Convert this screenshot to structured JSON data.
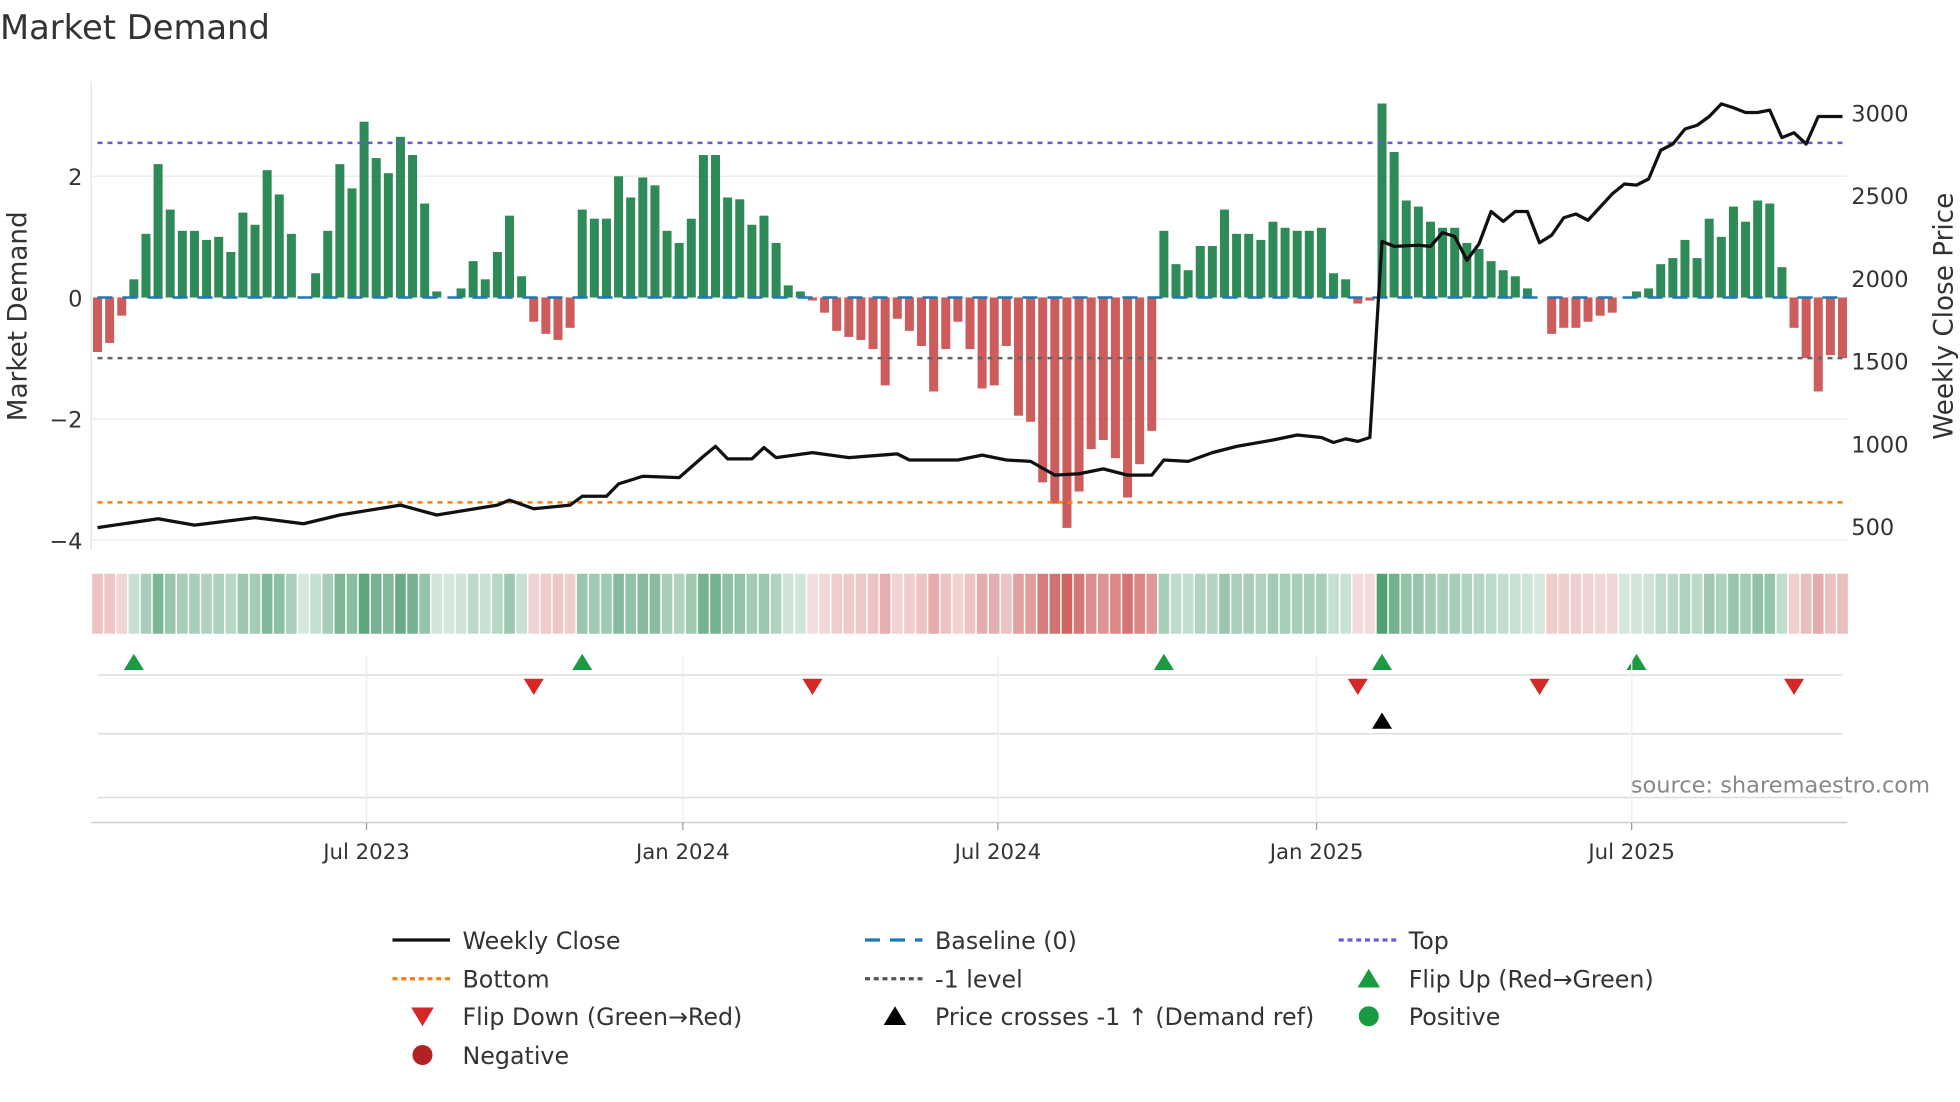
{
  "chart_data": {
    "type": "bar",
    "title": "Market Demand",
    "ylabel": "Market Demand",
    "y2label": "Weekly Close Price",
    "ylim": [
      -4.3,
      3.4
    ],
    "y2lim": [
      480,
      3300
    ],
    "yticks": [
      {
        "v": 2,
        "label": "2"
      },
      {
        "v": 0,
        "label": "0"
      },
      {
        "v": -2,
        "label": "−2"
      },
      {
        "v": -4,
        "label": "−4"
      }
    ],
    "y2ticks": [
      {
        "v": 500,
        "label": "500"
      },
      {
        "v": 1000,
        "label": "1000"
      },
      {
        "v": 1500,
        "label": "1500"
      },
      {
        "v": 2000,
        "label": "2000"
      },
      {
        "v": 2500,
        "label": "2500"
      },
      {
        "v": 3000,
        "label": "3000"
      }
    ],
    "xticks": [
      {
        "i": 22.2,
        "label": "Jul 2023"
      },
      {
        "i": 48.3,
        "label": "Jan 2024"
      },
      {
        "i": 74.3,
        "label": "Jul 2024"
      },
      {
        "i": 100.6,
        "label": "Jan 2025"
      },
      {
        "i": 126.6,
        "label": "Jul 2025"
      }
    ],
    "demand": [
      -0.9,
      -0.75,
      -0.3,
      0.3,
      1.05,
      2.2,
      1.45,
      1.1,
      1.1,
      0.95,
      1.0,
      0.75,
      1.4,
      1.2,
      2.1,
      1.7,
      1.05,
      0,
      0.4,
      1.1,
      2.2,
      1.8,
      2.9,
      2.3,
      2.05,
      2.65,
      2.35,
      1.55,
      0.1,
      0,
      0.15,
      0.6,
      0.3,
      0.75,
      1.35,
      0.35,
      -0.4,
      -0.6,
      -0.7,
      -0.5,
      1.45,
      1.3,
      1.3,
      2.0,
      1.65,
      1.98,
      1.85,
      1.1,
      0.9,
      1.3,
      2.35,
      2.35,
      1.65,
      1.62,
      1.2,
      1.35,
      0.9,
      0.2,
      0.1,
      -0.05,
      -0.25,
      -0.55,
      -0.65,
      -0.7,
      -0.85,
      -1.45,
      -0.35,
      -0.55,
      -0.8,
      -1.55,
      -0.85,
      -0.4,
      -0.85,
      -1.5,
      -1.45,
      -0.8,
      -1.95,
      -2.05,
      -3.05,
      -3.4,
      -3.8,
      -3.2,
      -2.5,
      -2.35,
      -2.65,
      -3.3,
      -2.75,
      -2.2,
      1.1,
      0.55,
      0.45,
      0.85,
      0.85,
      1.45,
      1.05,
      1.05,
      0.95,
      1.25,
      1.15,
      1.1,
      1.1,
      1.15,
      0.4,
      0.3,
      -0.1,
      -0.05,
      3.2,
      2.4,
      1.6,
      1.5,
      1.25,
      1.15,
      1.15,
      0.9,
      0.8,
      0.6,
      0.45,
      0.35,
      0.15,
      0,
      -0.6,
      -0.5,
      -0.5,
      -0.4,
      -0.3,
      -0.25,
      0,
      0.1,
      0.15,
      0.55,
      0.65,
      0.95,
      0.65,
      1.3,
      1.0,
      1.5,
      1.25,
      1.6,
      1.55,
      0.5,
      -0.5,
      -1.0,
      -1.55,
      -0.95,
      -1.0
    ],
    "price_anchors": [
      [
        0,
        492
      ],
      [
        5,
        545
      ],
      [
        8,
        507
      ],
      [
        13,
        552
      ],
      [
        17,
        515
      ],
      [
        20,
        568
      ],
      [
        25,
        628
      ],
      [
        28,
        568
      ],
      [
        33,
        628
      ],
      [
        34,
        658
      ],
      [
        36,
        606
      ],
      [
        39,
        628
      ],
      [
        40,
        681
      ],
      [
        42,
        681
      ],
      [
        43,
        756
      ],
      [
        45,
        802
      ],
      [
        48,
        794
      ],
      [
        50,
        922
      ],
      [
        51,
        983
      ],
      [
        52,
        907
      ],
      [
        54,
        907
      ],
      [
        55,
        975
      ],
      [
        56,
        915
      ],
      [
        59,
        945
      ],
      [
        62,
        915
      ],
      [
        66,
        937
      ],
      [
        67,
        900
      ],
      [
        71,
        900
      ],
      [
        73,
        930
      ],
      [
        75,
        900
      ],
      [
        77,
        892
      ],
      [
        79,
        809
      ],
      [
        81,
        817
      ],
      [
        83,
        847
      ],
      [
        85,
        809
      ],
      [
        87,
        809
      ],
      [
        88,
        900
      ],
      [
        90,
        892
      ],
      [
        92,
        945
      ],
      [
        94,
        983
      ],
      [
        97,
        1021
      ],
      [
        99,
        1051
      ],
      [
        101,
        1036
      ],
      [
        102,
        1006
      ],
      [
        103,
        1028
      ],
      [
        104,
        1013
      ],
      [
        105,
        1036
      ],
      [
        106,
        2221
      ],
      [
        107,
        2191
      ],
      [
        109,
        2198
      ],
      [
        110,
        2191
      ],
      [
        111,
        2274
      ],
      [
        112,
        2251
      ],
      [
        113,
        2107
      ],
      [
        114,
        2206
      ],
      [
        115,
        2402
      ],
      [
        116,
        2342
      ],
      [
        117,
        2402
      ],
      [
        118,
        2402
      ],
      [
        119,
        2213
      ],
      [
        120,
        2258
      ],
      [
        121,
        2364
      ],
      [
        122,
        2387
      ],
      [
        123,
        2349
      ],
      [
        125,
        2508
      ],
      [
        126,
        2568
      ],
      [
        127,
        2561
      ],
      [
        128,
        2598
      ],
      [
        129,
        2772
      ],
      [
        130,
        2810
      ],
      [
        131,
        2900
      ],
      [
        132,
        2923
      ],
      [
        133,
        2976
      ],
      [
        134,
        3052
      ],
      [
        135,
        3029
      ],
      [
        136,
        3000
      ],
      [
        137,
        3000
      ],
      [
        138,
        3014
      ],
      [
        139,
        2848
      ],
      [
        140,
        2878
      ],
      [
        141,
        2810
      ],
      [
        142,
        2976
      ],
      [
        144,
        2976
      ]
    ],
    "levels": {
      "top": 2.55,
      "minus_one": -1,
      "bottom": -3.38,
      "baseline": 0
    },
    "flip_up": [
      3,
      40,
      88,
      106,
      127
    ],
    "flip_down": [
      36,
      59,
      104,
      119,
      140
    ],
    "price_crosses": [
      106
    ],
    "legend_position": "bottom-center",
    "legend": [
      {
        "label": "Weekly Close",
        "kind": "line-solid",
        "color": "#111111"
      },
      {
        "label": "Baseline (0)",
        "kind": "line-dash",
        "color": "#1f77b4"
      },
      {
        "label": "Top",
        "kind": "line-dot",
        "color": "#6a5acd"
      },
      {
        "label": "Bottom",
        "kind": "line-dot",
        "color": "#ff7f0e"
      },
      {
        "label": "-1 level",
        "kind": "line-dot",
        "color": "#555555"
      },
      {
        "label": "Flip Up (Red→Green)",
        "kind": "tri-up",
        "color": "#1a9a41"
      },
      {
        "label": "Flip Down (Green→Red)",
        "kind": "tri-down",
        "color": "#d62728"
      },
      {
        "label": "Price crosses -1 ↑ (Demand ref)",
        "kind": "tri-up",
        "color": "#000000"
      },
      {
        "label": "Positive",
        "kind": "dot",
        "color": "#1a9a41"
      },
      {
        "label": "Negative",
        "kind": "dot",
        "color": "#b22222"
      }
    ],
    "source": "source: sharemaestro.com",
    "colors": {
      "positive": "#2e8b57",
      "negative": "#cd5c5c"
    }
  }
}
